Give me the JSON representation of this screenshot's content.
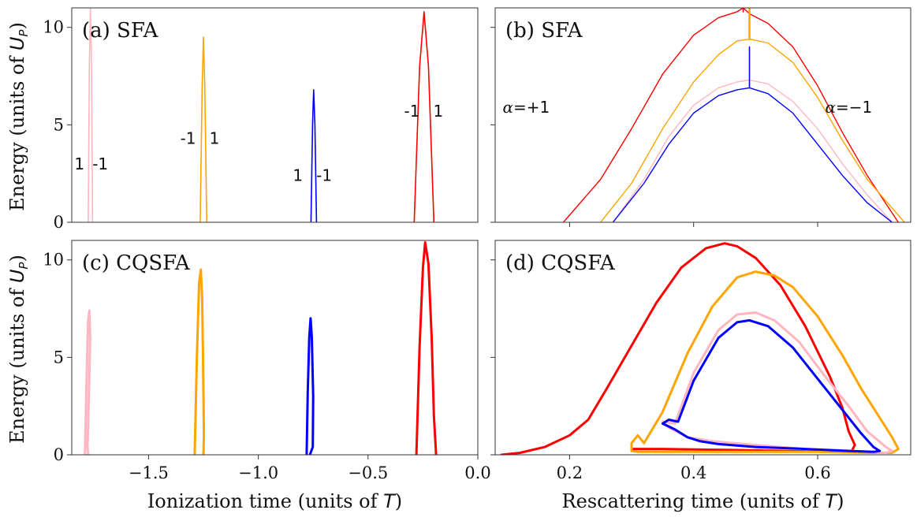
{
  "colors": {
    "pink": "#ffb6c1",
    "orange": "#ffa500",
    "blue": "#0000ff",
    "red": "#ff0000",
    "axis": "#333333"
  },
  "ylabel": [
    "Energy (units of ",
    "U",
    "P",
    ")"
  ],
  "chart_data": [
    {
      "id": "a",
      "type": "line",
      "title": "(a) SFA",
      "xlim": [
        -1.85,
        0.0
      ],
      "ylim": [
        0,
        11
      ],
      "xticks": [],
      "yticks": [
        0,
        5,
        10
      ],
      "ytick_labels": [
        "0",
        "5",
        "10"
      ],
      "series": [
        {
          "name": "pink",
          "color": "pink",
          "width": 1.6,
          "x": [
            -1.775,
            -1.77,
            -1.765,
            -1.76,
            -1.755
          ],
          "y": [
            0,
            8,
            11,
            8,
            0
          ]
        },
        {
          "name": "orange",
          "color": "orange",
          "width": 1.6,
          "x": [
            -1.265,
            -1.256,
            -1.25,
            -1.244,
            -1.235
          ],
          "y": [
            0,
            7,
            9.5,
            7,
            0
          ]
        },
        {
          "name": "blue",
          "color": "blue",
          "width": 1.6,
          "x": [
            -0.76,
            -0.753,
            -0.748,
            -0.742,
            -0.735
          ],
          "y": [
            0,
            5,
            6.8,
            5,
            0
          ]
        },
        {
          "name": "red",
          "color": "red",
          "width": 1.6,
          "x": [
            -0.29,
            -0.265,
            -0.245,
            -0.225,
            -0.2
          ],
          "y": [
            0,
            8,
            10.8,
            8,
            0
          ]
        }
      ],
      "annotations": [
        {
          "text": "1",
          "x": -1.815,
          "y": 3.0
        },
        {
          "text": "-1",
          "x": -1.72,
          "y": 3.0
        },
        {
          "text": "-1",
          "x": -1.32,
          "y": 4.3
        },
        {
          "text": "1",
          "x": -1.2,
          "y": 4.3
        },
        {
          "text": "1",
          "x": -0.82,
          "y": 2.4
        },
        {
          "text": "-1",
          "x": -0.7,
          "y": 2.4
        },
        {
          "text": "-1",
          "x": -0.3,
          "y": 5.7
        },
        {
          "text": "1",
          "x": -0.18,
          "y": 5.7
        }
      ]
    },
    {
      "id": "b",
      "type": "line",
      "title": "(b) SFA",
      "xlim": [
        0.08,
        0.75
      ],
      "ylim": [
        0,
        11
      ],
      "xticks": [
        0.2,
        0.4,
        0.6
      ],
      "yticks": [
        0,
        5,
        10
      ],
      "ytick_labels": [],
      "series": [
        {
          "name": "red",
          "color": "red",
          "width": 1.4,
          "x": [
            0.19,
            0.25,
            0.3,
            0.35,
            0.4,
            0.44,
            0.47,
            0.48,
            0.49,
            0.52,
            0.56,
            0.6,
            0.64,
            0.68,
            0.73
          ],
          "y": [
            0,
            2.2,
            4.8,
            7.6,
            9.6,
            10.5,
            10.8,
            11,
            10.7,
            10.2,
            9.0,
            7.0,
            4.6,
            2.4,
            0
          ]
        },
        {
          "name": "orange",
          "color": "orange",
          "width": 1.4,
          "x": [
            0.25,
            0.3,
            0.35,
            0.4,
            0.44,
            0.47,
            0.49,
            0.52,
            0.56,
            0.6,
            0.64,
            0.68,
            0.74
          ],
          "y": [
            0,
            2.0,
            4.8,
            7.2,
            8.6,
            9.3,
            9.4,
            9.2,
            8.2,
            6.4,
            4.2,
            2.2,
            0
          ]
        },
        {
          "name": "pink",
          "color": "pink",
          "width": 1.4,
          "x": [
            0.27,
            0.32,
            0.36,
            0.4,
            0.44,
            0.47,
            0.49,
            0.52,
            0.56,
            0.6,
            0.64,
            0.68,
            0.72
          ],
          "y": [
            0,
            2.2,
            4.4,
            6.0,
            6.9,
            7.2,
            7.3,
            7.1,
            6.2,
            4.8,
            3.0,
            1.4,
            0
          ]
        },
        {
          "name": "blue",
          "color": "blue",
          "width": 1.4,
          "x": [
            0.27,
            0.32,
            0.36,
            0.4,
            0.44,
            0.47,
            0.49,
            0.52,
            0.56,
            0.6,
            0.64,
            0.68,
            0.72
          ],
          "y": [
            0,
            2.0,
            4.0,
            5.6,
            6.5,
            6.8,
            6.9,
            6.6,
            5.6,
            4.0,
            2.4,
            1.0,
            0
          ]
        },
        {
          "name": "red-spike",
          "color": "red",
          "width": 1.6,
          "x": [
            0.48,
            0.48
          ],
          "y": [
            10.8,
            11
          ]
        },
        {
          "name": "orange-spike",
          "color": "orange",
          "width": 2.5,
          "x": [
            0.49,
            0.49
          ],
          "y": [
            9.4,
            11
          ]
        },
        {
          "name": "blue-spike",
          "color": "blue",
          "width": 1.6,
          "x": [
            0.49,
            0.49
          ],
          "y": [
            6.9,
            9.0
          ]
        }
      ],
      "annotations": [
        {
          "text": "α=+1",
          "x": 0.13,
          "y": 5.9
        },
        {
          "text": "α=−1",
          "x": 0.65,
          "y": 5.9
        }
      ]
    },
    {
      "id": "c",
      "type": "line",
      "title": "(c) CQSFA",
      "xlim": [
        -1.85,
        0.0
      ],
      "ylim": [
        0,
        11
      ],
      "xticks": [
        -1.5,
        -1.0,
        -0.5,
        0.0
      ],
      "xtick_labels": [
        "−1.5",
        "−1.0",
        "−0.5",
        "0.0"
      ],
      "yticks": [
        0,
        5,
        10
      ],
      "ytick_labels": [
        "0",
        "5",
        "10"
      ],
      "xlabel": [
        "Ionization time (units of ",
        "T",
        ")"
      ],
      "series": [
        {
          "name": "pink",
          "color": "pink",
          "width": 3,
          "x": [
            -1.79,
            -1.782,
            -1.776,
            -1.77,
            -1.766,
            -1.772,
            -1.778,
            -1.775
          ],
          "y": [
            0,
            4.0,
            6.8,
            7.4,
            6.0,
            3.0,
            0.4,
            0
          ]
        },
        {
          "name": "orange",
          "color": "orange",
          "width": 3,
          "x": [
            -1.29,
            -1.28,
            -1.27,
            -1.262,
            -1.256,
            -1.252,
            -1.248,
            -1.25
          ],
          "y": [
            0,
            5.0,
            8.8,
            9.5,
            8.0,
            5.0,
            1.0,
            0
          ]
        },
        {
          "name": "blue",
          "color": "blue",
          "width": 3,
          "x": [
            -0.78,
            -0.775,
            -0.768,
            -0.762,
            -0.756,
            -0.75,
            -0.752,
            -0.765
          ],
          "y": [
            0,
            3.2,
            6.0,
            7.0,
            6.0,
            3.0,
            0.4,
            0
          ]
        },
        {
          "name": "red",
          "color": "red",
          "width": 3,
          "x": [
            -0.28,
            -0.265,
            -0.25,
            -0.24,
            -0.225,
            -0.21,
            -0.2,
            -0.19
          ],
          "y": [
            0,
            5.6,
            9.6,
            10.9,
            9.8,
            6.0,
            2.0,
            0
          ]
        }
      ]
    },
    {
      "id": "d",
      "type": "line",
      "title": "(d) CQSFA",
      "xlim": [
        0.08,
        0.75
      ],
      "ylim": [
        0,
        11
      ],
      "xticks": [
        0.2,
        0.4,
        0.6
      ],
      "xtick_labels": [
        "0.2",
        "0.4",
        "0.6"
      ],
      "yticks": [
        0,
        5,
        10
      ],
      "ytick_labels": [],
      "xlabel": [
        "Rescattering time (units of ",
        "T",
        ")"
      ],
      "series": [
        {
          "name": "red",
          "color": "red",
          "width": 3,
          "x": [
            0.09,
            0.12,
            0.16,
            0.2,
            0.23,
            0.26,
            0.3,
            0.34,
            0.38,
            0.42,
            0.45,
            0.47,
            0.5,
            0.54,
            0.58,
            0.62,
            0.64,
            0.65,
            0.66,
            0.655,
            0.62,
            0.55,
            0.45,
            0.35,
            0.3
          ],
          "y": [
            0,
            0.1,
            0.4,
            1.0,
            1.8,
            3.4,
            5.6,
            7.8,
            9.6,
            10.6,
            10.85,
            10.7,
            10.1,
            8.7,
            6.6,
            4.0,
            2.4,
            1.2,
            0.5,
            0.2,
            0.15,
            0.2,
            0.25,
            0.3,
            0.3
          ]
        },
        {
          "name": "orange",
          "color": "orange",
          "width": 3,
          "x": [
            0.3,
            0.3,
            0.31,
            0.32,
            0.35,
            0.39,
            0.43,
            0.47,
            0.5,
            0.53,
            0.56,
            0.6,
            0.64,
            0.67,
            0.7,
            0.72,
            0.73,
            0.72,
            0.68,
            0.6,
            0.5,
            0.4,
            0.33,
            0.31,
            0.3
          ],
          "y": [
            0.2,
            0.6,
            1.0,
            0.6,
            2.2,
            5.2,
            7.6,
            9.1,
            9.4,
            9.2,
            8.6,
            7.1,
            5.1,
            3.4,
            1.9,
            0.9,
            0.3,
            0.1,
            0.1,
            0.15,
            0.15,
            0.15,
            0.15,
            0.15,
            0.2
          ]
        },
        {
          "name": "pink",
          "color": "pink",
          "width": 3,
          "x": [
            0.35,
            0.37,
            0.4,
            0.44,
            0.47,
            0.5,
            0.53,
            0.57,
            0.61,
            0.65,
            0.68,
            0.71,
            0.72,
            0.71,
            0.66,
            0.58,
            0.5,
            0.43,
            0.39,
            0.36,
            0.35
          ],
          "y": [
            1.7,
            1.6,
            4.2,
            6.4,
            7.2,
            7.3,
            6.9,
            5.8,
            4.1,
            2.5,
            1.2,
            0.4,
            0.2,
            0.1,
            0.2,
            0.3,
            0.5,
            0.7,
            0.9,
            1.4,
            1.7
          ]
        },
        {
          "name": "blue",
          "color": "blue",
          "width": 3,
          "x": [
            0.35,
            0.36,
            0.375,
            0.4,
            0.44,
            0.47,
            0.49,
            0.52,
            0.56,
            0.6,
            0.64,
            0.67,
            0.69,
            0.7,
            0.69,
            0.65,
            0.58,
            0.5,
            0.44,
            0.41,
            0.39,
            0.37,
            0.35
          ],
          "y": [
            1.6,
            1.8,
            1.7,
            3.8,
            6.0,
            6.8,
            6.9,
            6.6,
            5.5,
            3.9,
            2.3,
            1.1,
            0.4,
            0.2,
            0.15,
            0.2,
            0.3,
            0.4,
            0.55,
            0.7,
            0.9,
            1.3,
            1.6
          ]
        }
      ]
    }
  ]
}
